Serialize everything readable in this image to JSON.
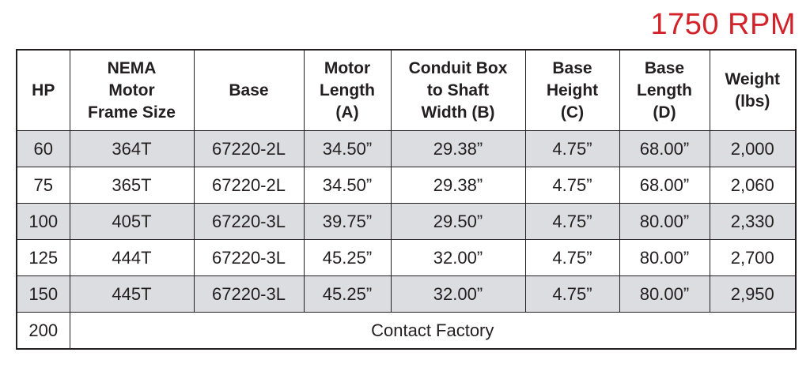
{
  "title": "1750 RPM",
  "table": {
    "header": [
      [
        "HP"
      ],
      [
        "NEMA",
        "Motor",
        "Frame Size"
      ],
      [
        "Base"
      ],
      [
        "Motor",
        "Length",
        "(A)"
      ],
      [
        "Conduit Box",
        "to Shaft",
        "Width (B)"
      ],
      [
        "Base",
        "Height",
        "(C)"
      ],
      [
        "Base",
        "Length",
        "(D)"
      ],
      [
        "Weight",
        "(lbs)"
      ]
    ],
    "rows": [
      [
        "60",
        "364T",
        "67220-2L",
        "34.50”",
        "29.38”",
        "4.75”",
        "68.00”",
        "2,000"
      ],
      [
        "75",
        "365T",
        "67220-2L",
        "34.50”",
        "29.38”",
        "4.75”",
        "68.00”",
        "2,060"
      ],
      [
        "100",
        "405T",
        "67220-3L",
        "39.75”",
        "29.50”",
        "4.75”",
        "80.00”",
        "2,330"
      ],
      [
        "125",
        "444T",
        "67220-3L",
        "45.25”",
        "32.00”",
        "4.75”",
        "80.00”",
        "2,700"
      ],
      [
        "150",
        "445T",
        "67220-3L",
        "45.25”",
        "32.00”",
        "4.75”",
        "80.00”",
        "2,950"
      ],
      [
        "200",
        "Contact Factory"
      ]
    ]
  }
}
